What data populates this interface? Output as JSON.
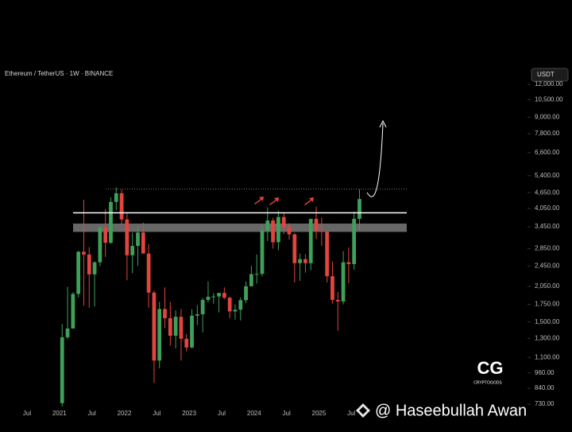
{
  "chart_data": {
    "type": "candlestick",
    "title": "Ethereum / TetherUS · 1W · BINANCE",
    "currency": "USDT",
    "logo": "CG",
    "logo_text": "CRYPTOGODS",
    "watermark": "@ Haseebullah Awan",
    "log_scale": true,
    "up_color": "#3fa05a",
    "down_color": "#e0453f",
    "x": [
      "2021-01",
      "2021-02",
      "2021-03",
      "2021-04",
      "2021-05",
      "2021-06",
      "2021-07",
      "2021-08",
      "2021-09",
      "2021-10",
      "2021-11",
      "2021-12",
      "2022-01",
      "2022-02",
      "2022-03",
      "2022-04",
      "2022-05",
      "2022-06",
      "2022-07",
      "2022-08",
      "2022-09",
      "2022-10",
      "2022-11",
      "2022-12",
      "2023-01",
      "2023-02",
      "2023-03",
      "2023-04",
      "2023-05",
      "2023-06",
      "2023-07",
      "2023-08",
      "2023-09",
      "2023-10",
      "2023-11",
      "2023-12",
      "2024-01",
      "2024-02",
      "2024-03",
      "2024-04",
      "2024-05",
      "2024-06",
      "2024-07",
      "2024-08",
      "2024-09",
      "2024-10",
      "2024-11",
      "2024-12",
      "2025-01",
      "2025-02",
      "2025-03",
      "2025-04",
      "2025-05",
      "2025-06",
      "2025-07",
      "2025-08"
    ],
    "open": [
      737,
      1312,
      1417,
      1918,
      2773,
      2707,
      2275,
      2530,
      3430,
      3000,
      4290,
      4630,
      3680,
      2690,
      2920,
      3280,
      2730,
      1940,
      1070,
      1680,
      1550,
      1330,
      1570,
      1295,
      1200,
      1585,
      1605,
      1820,
      1870,
      1875,
      1935,
      1855,
      1645,
      1670,
      1815,
      2050,
      2280,
      2285,
      3340,
      3645,
      3015,
      3760,
      3440,
      3230,
      2510,
      2600,
      2510,
      3700,
      3330,
      3300,
      2240,
      1820,
      1795,
      2530,
      2490,
      3700
    ],
    "high": [
      1475,
      2040,
      1945,
      2796,
      4372,
      2890,
      2550,
      3470,
      4030,
      4460,
      4870,
      4780,
      3880,
      3280,
      3480,
      3580,
      2960,
      1970,
      1790,
      2030,
      1790,
      1660,
      1680,
      1350,
      1680,
      1740,
      1850,
      2140,
      1930,
      1930,
      2030,
      1870,
      1750,
      1860,
      2140,
      2450,
      2710,
      3520,
      4090,
      3730,
      3975,
      3890,
      3560,
      3270,
      2730,
      2720,
      3680,
      4110,
      3740,
      3300,
      2550,
      1950,
      2790,
      2880,
      3940,
      4790
    ],
    "low": [
      715,
      1290,
      1415,
      1860,
      1730,
      1700,
      1720,
      2450,
      2650,
      2970,
      3990,
      3500,
      2160,
      2300,
      2450,
      2780,
      1700,
      880,
      1000,
      1420,
      1220,
      1190,
      1070,
      1160,
      1190,
      1460,
      1370,
      1780,
      1760,
      1630,
      1830,
      1550,
      1530,
      1520,
      1770,
      2050,
      2100,
      2240,
      3050,
      2850,
      2810,
      3240,
      3080,
      2120,
      2150,
      2310,
      2360,
      3100,
      2920,
      2120,
      1760,
      1390,
      1750,
      2110,
      2370,
      3350
    ],
    "close": [
      1312,
      1417,
      1918,
      2773,
      2707,
      2275,
      2530,
      3430,
      3000,
      4290,
      4630,
      3680,
      2690,
      2920,
      3280,
      2730,
      1940,
      1070,
      1680,
      1550,
      1330,
      1570,
      1295,
      1200,
      1585,
      1605,
      1820,
      1870,
      1875,
      1935,
      1855,
      1645,
      1670,
      1815,
      2050,
      2280,
      2285,
      3340,
      3645,
      3015,
      3760,
      3440,
      3230,
      2510,
      2600,
      2510,
      3700,
      3330,
      3300,
      2240,
      1820,
      1795,
      2530,
      2490,
      3700,
      4400
    ],
    "xlim": [
      "2020-02",
      "2028-03"
    ],
    "xticks": [
      {
        "value": "2020-07",
        "label": "Jul"
      },
      {
        "value": "2021-01",
        "label": "2021"
      },
      {
        "value": "2021-07",
        "label": "Jul"
      },
      {
        "value": "2022-01",
        "label": "2022"
      },
      {
        "value": "2022-07",
        "label": "Jul"
      },
      {
        "value": "2023-01",
        "label": "2023"
      },
      {
        "value": "2023-07",
        "label": "Jul"
      },
      {
        "value": "2024-01",
        "label": "2024"
      },
      {
        "value": "2024-07",
        "label": "Jul"
      },
      {
        "value": "2025-01",
        "label": "2025"
      },
      {
        "value": "2025-07",
        "label": "Jul"
      }
    ],
    "ylim": [
      672,
      13900
    ],
    "yticks": [
      {
        "value": 12000,
        "label": "12,000.00"
      },
      {
        "value": 10500,
        "label": "10,500.00"
      },
      {
        "value": 9000,
        "label": "9,000.00"
      },
      {
        "value": 7800,
        "label": "7,800.00"
      },
      {
        "value": 6600,
        "label": "6,600.00"
      },
      {
        "value": 5400,
        "label": "5,400.00"
      },
      {
        "value": 4650,
        "label": "4,650.00"
      },
      {
        "value": 4050,
        "label": "4,050.00"
      },
      {
        "value": 3450,
        "label": "3,450.00"
      },
      {
        "value": 2850,
        "label": "2,850.00"
      },
      {
        "value": 2450,
        "label": "2,450.00"
      },
      {
        "value": 2050,
        "label": "2,050.00"
      },
      {
        "value": 1750,
        "label": "1,750.00"
      },
      {
        "value": 1500,
        "label": "1,500.00"
      },
      {
        "value": 1300,
        "label": "1,300.00"
      },
      {
        "value": 1100,
        "label": "1,100.00"
      },
      {
        "value": 960,
        "label": "960.00"
      },
      {
        "value": 840,
        "label": "840.00"
      },
      {
        "value": 730,
        "label": "730.00"
      }
    ],
    "lines": [
      {
        "value": 4800,
        "style": "dotted"
      },
      {
        "value": 3900,
        "style": "solid"
      }
    ],
    "zones": [
      {
        "low": 3300,
        "high": 3550
      }
    ]
  }
}
